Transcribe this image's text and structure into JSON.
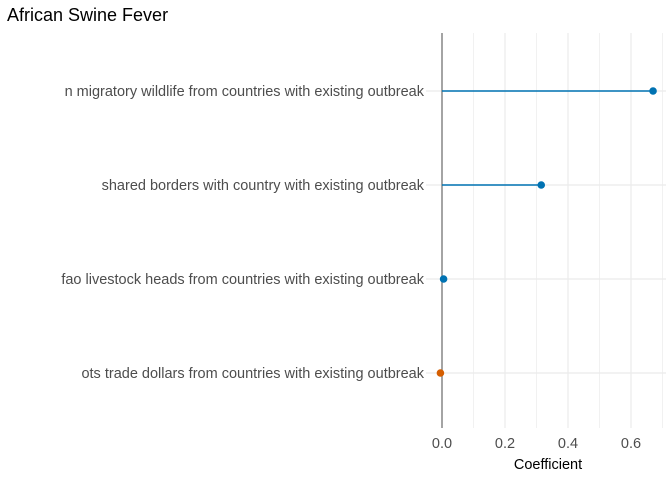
{
  "chart_data": {
    "type": "lollipop",
    "title": "African Swine Fever",
    "xlabel": "Coefficient",
    "ylabel": "",
    "xlim": [
      -0.005,
      0.7
    ],
    "xticks": [
      0.0,
      0.2,
      0.4,
      0.6
    ],
    "xtick_labels": [
      "0.0",
      "0.2",
      "0.4",
      "0.6"
    ],
    "grid": true,
    "categories": [
      "n migratory wildlife from countries with existing outbreak",
      "shared borders with country with existing outbreak",
      "fao livestock heads from countries with existing outbreak",
      "ots trade dollars from countries with existing outbreak"
    ],
    "values": [
      0.67,
      0.315,
      0.005,
      -0.005
    ],
    "colors": [
      "#0072B2",
      "#0072B2",
      "#0072B2",
      "#D55E00"
    ],
    "zero_line_color": "#7f7f7f",
    "grid_color": "#ebebeb"
  }
}
